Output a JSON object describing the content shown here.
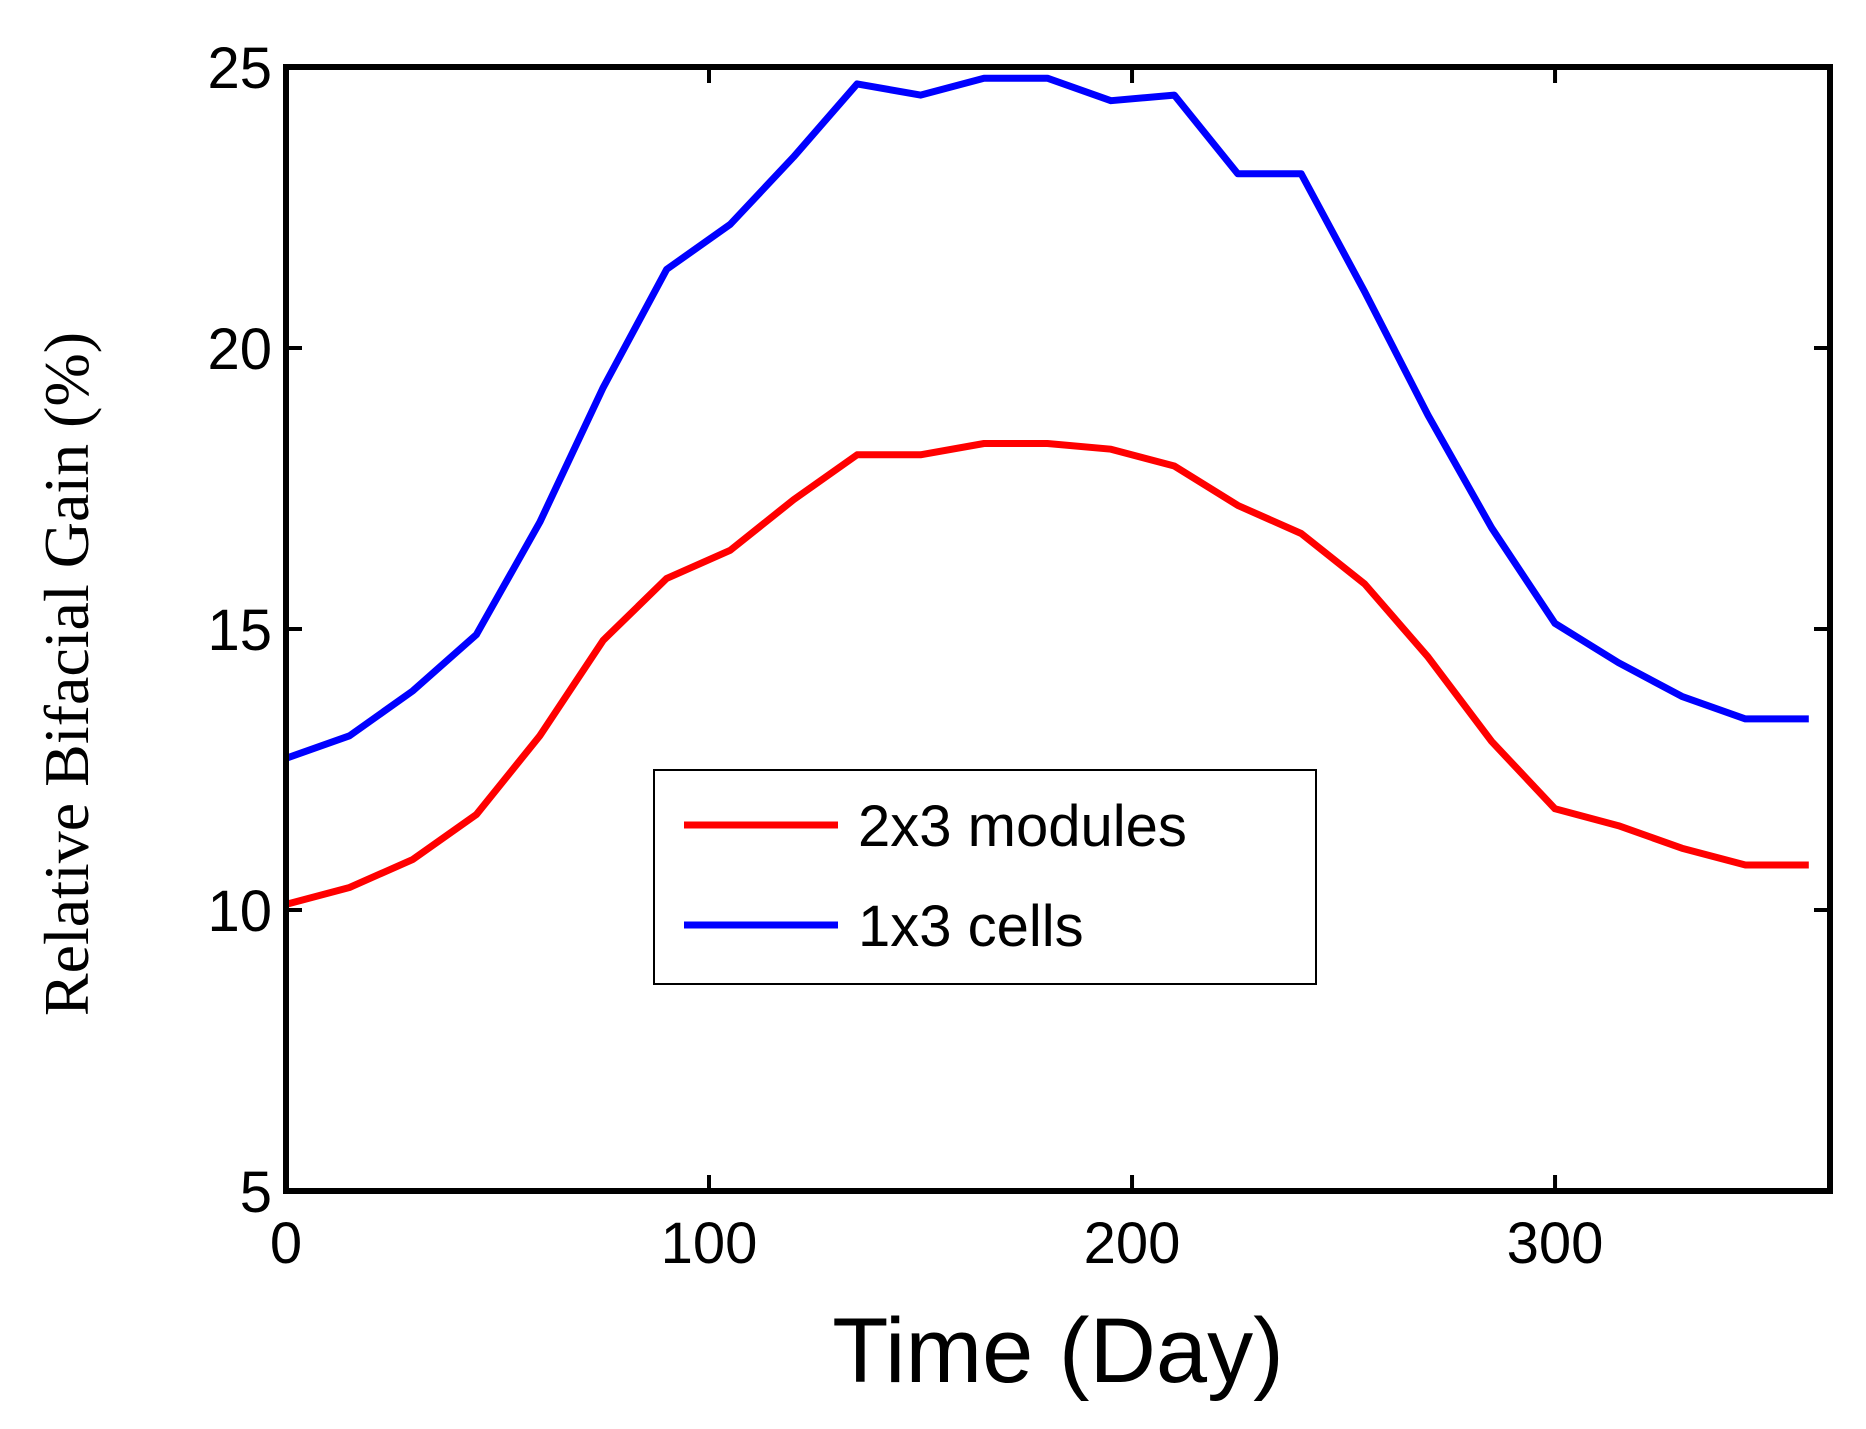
{
  "chart_data": {
    "type": "line",
    "title": "",
    "xlabel": "Time (Day)",
    "ylabel": "Relative Bifacial Gain (%)",
    "xlim": [
      0,
      365
    ],
    "ylim": [
      5,
      25
    ],
    "xticks": [
      0,
      100,
      200,
      300
    ],
    "yticks": [
      5,
      10,
      15,
      20,
      25
    ],
    "xtick_labels": [
      "0",
      "100",
      "200",
      "300"
    ],
    "ytick_labels": [
      "5",
      "10",
      "15",
      "20",
      "25"
    ],
    "grid": false,
    "legend_position": "center",
    "x": [
      0,
      15,
      30,
      45,
      60,
      75,
      90,
      105,
      120,
      135,
      150,
      165,
      180,
      195,
      210,
      225,
      240,
      255,
      270,
      285,
      300,
      315,
      330,
      345,
      360
    ],
    "series": [
      {
        "name": "2x3 modules",
        "color": "#ff0000",
        "values": [
          10.1,
          10.4,
          10.9,
          11.7,
          13.1,
          14.8,
          15.9,
          16.4,
          17.3,
          18.1,
          18.1,
          18.3,
          18.3,
          18.2,
          17.9,
          17.2,
          16.7,
          15.8,
          14.5,
          13.0,
          11.8,
          11.5,
          11.1,
          10.8,
          10.8
        ]
      },
      {
        "name": "1x3 cells",
        "color": "#0000ff",
        "values": [
          12.7,
          13.1,
          13.9,
          14.9,
          16.9,
          19.3,
          21.4,
          22.2,
          23.4,
          24.7,
          24.5,
          24.8,
          24.8,
          24.4,
          24.5,
          23.1,
          23.1,
          21.0,
          18.8,
          16.8,
          15.1,
          14.4,
          13.8,
          13.4,
          13.4
        ]
      }
    ]
  }
}
